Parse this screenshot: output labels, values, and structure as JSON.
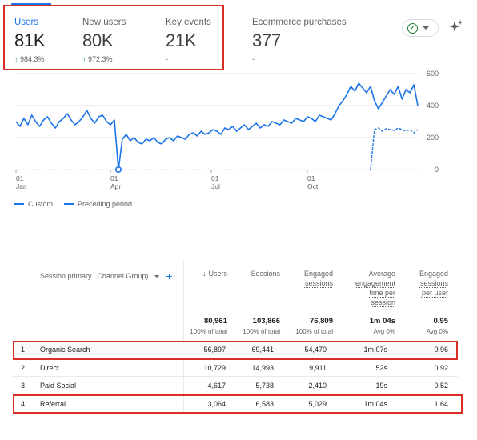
{
  "metrics": [
    {
      "label": "Users",
      "value": "81K",
      "delta": "984.3%",
      "arrow": "↑"
    },
    {
      "label": "New users",
      "value": "80K",
      "delta": "972.3%",
      "arrow": "↑"
    },
    {
      "label": "Key events",
      "value": "21K",
      "delta": "-",
      "arrow": ""
    },
    {
      "label": "Ecommerce purchases",
      "value": "377",
      "delta": "-",
      "arrow": ""
    }
  ],
  "icons": {
    "status": "check-circle-icon",
    "dropdown": "chevron-down-icon",
    "insights": "sparkle-icon"
  },
  "colors": {
    "accent": "#1a73e8",
    "positive": "#188038",
    "highlight": "#d93025"
  },
  "chart_data": {
    "type": "line",
    "x_ticks": [
      {
        "day": "01",
        "month": "Jan"
      },
      {
        "day": "01",
        "month": "Apr"
      },
      {
        "day": "01",
        "month": "Jul"
      },
      {
        "day": "01",
        "month": "Oct"
      }
    ],
    "y_ticks": [
      "600",
      "400",
      "200",
      "0"
    ],
    "ylim": [
      0,
      600
    ],
    "grid": true,
    "legend_position": "bottom-left",
    "series": [
      {
        "name": "Custom",
        "style": "solid",
        "values": [
          300,
          270,
          320,
          280,
          340,
          300,
          270,
          310,
          330,
          290,
          260,
          300,
          320,
          350,
          310,
          280,
          300,
          330,
          370,
          320,
          290,
          330,
          340,
          300,
          280,
          310,
          0,
          190,
          220,
          180,
          200,
          170,
          160,
          190,
          180,
          200,
          170,
          160,
          190,
          200,
          180,
          210,
          200,
          190,
          220,
          230,
          210,
          240,
          220,
          230,
          250,
          240,
          220,
          260,
          250,
          270,
          240,
          260,
          280,
          250,
          270,
          290,
          260,
          280,
          270,
          300,
          290,
          280,
          310,
          300,
          290,
          320,
          310,
          300,
          330,
          320,
          300,
          340,
          330,
          320,
          310,
          350,
          400,
          430,
          470,
          520,
          490,
          540,
          510,
          480,
          520,
          430,
          380,
          420,
          460,
          500,
          470,
          520,
          440,
          500,
          480,
          530,
          400
        ]
      },
      {
        "name": "Preceding period",
        "style": "dashed",
        "values": [
          250,
          260,
          240,
          255,
          250,
          245,
          260,
          250,
          240,
          250,
          230,
          250
        ]
      }
    ]
  },
  "table": {
    "dimension_header": "Session primary...Channel Group)",
    "add_label": "+",
    "columns": [
      {
        "label": "Users",
        "sorted": true,
        "sort_arrow": "↓"
      },
      {
        "label": "Sessions"
      },
      {
        "label": "Engaged sessions"
      },
      {
        "label": "Average engagement time per session"
      },
      {
        "label": "Engaged sessions per user"
      }
    ],
    "totals": [
      "80,961",
      "103,866",
      "76,809",
      "1m 04s",
      "0.95"
    ],
    "totals_pct": [
      "100% of total",
      "100% of total",
      "100% of total",
      "Avg 0%",
      "Avg 0%"
    ],
    "rows": [
      {
        "index": "1",
        "channel": "Organic Search",
        "values": [
          "56,897",
          "69,441",
          "54,470",
          "1m 07s",
          "0.96"
        ]
      },
      {
        "index": "2",
        "channel": "Direct",
        "values": [
          "10,729",
          "14,993",
          "9,911",
          "52s",
          "0.92"
        ]
      },
      {
        "index": "3",
        "channel": "Paid Social",
        "values": [
          "4,617",
          "5,738",
          "2,410",
          "19s",
          "0.52"
        ]
      },
      {
        "index": "4",
        "channel": "Referral",
        "values": [
          "3,064",
          "6,583",
          "5,029",
          "1m 04s",
          "1.64"
        ]
      }
    ]
  }
}
